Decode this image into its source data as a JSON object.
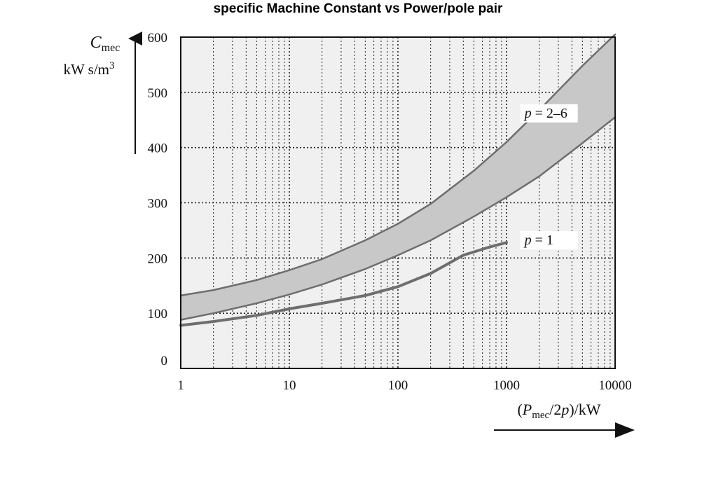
{
  "chart_data": {
    "type": "line",
    "title": "specific Machine Constant vs Power/pole pair",
    "ylabel": {
      "symbol": "C",
      "subscript": "mec",
      "unit": "kW s/m",
      "unit_superscript": "3"
    },
    "xlabel": {
      "open": "(",
      "symbol": "P",
      "subscript": "mec",
      "rest": "/2",
      "italic": "p",
      "close": ")/kW"
    },
    "x_scale": "log",
    "xlim": [
      1,
      10000
    ],
    "ylim": [
      0,
      600
    ],
    "x_ticks": [
      "1",
      "10",
      "100",
      "1000",
      "10000"
    ],
    "y_ticks": [
      "0",
      "100",
      "200",
      "300",
      "400",
      "500",
      "600"
    ],
    "grid": true,
    "band_fill": "#c8c8c8",
    "plot_bg": "#f0f0f0",
    "line_color": "#6e6e6e",
    "series": [
      {
        "name": "p = 2–6 upper",
        "x": [
          1,
          2,
          5,
          10,
          20,
          50,
          100,
          200,
          500,
          1000,
          2000,
          5000,
          10000
        ],
        "values": [
          132,
          142,
          160,
          178,
          198,
          232,
          262,
          298,
          358,
          410,
          468,
          548,
          605
        ]
      },
      {
        "name": "p = 2–6 lower",
        "x": [
          1,
          2,
          5,
          10,
          20,
          50,
          100,
          200,
          500,
          1000,
          2000,
          5000,
          10000
        ],
        "values": [
          88,
          100,
          118,
          134,
          152,
          180,
          205,
          232,
          275,
          310,
          348,
          408,
          455
        ]
      },
      {
        "name": "p = 1",
        "x": [
          1,
          2,
          5,
          10,
          20,
          50,
          100,
          200,
          400,
          700,
          1000
        ],
        "values": [
          78,
          85,
          96,
          108,
          118,
          132,
          148,
          172,
          205,
          220,
          228
        ]
      }
    ],
    "annotations": [
      {
        "italic": "p",
        "text": " = 2–6",
        "at_x": 1400,
        "at_y": 462
      },
      {
        "italic": "p",
        "text": " = 1",
        "at_x": 1400,
        "at_y": 232
      }
    ]
  }
}
